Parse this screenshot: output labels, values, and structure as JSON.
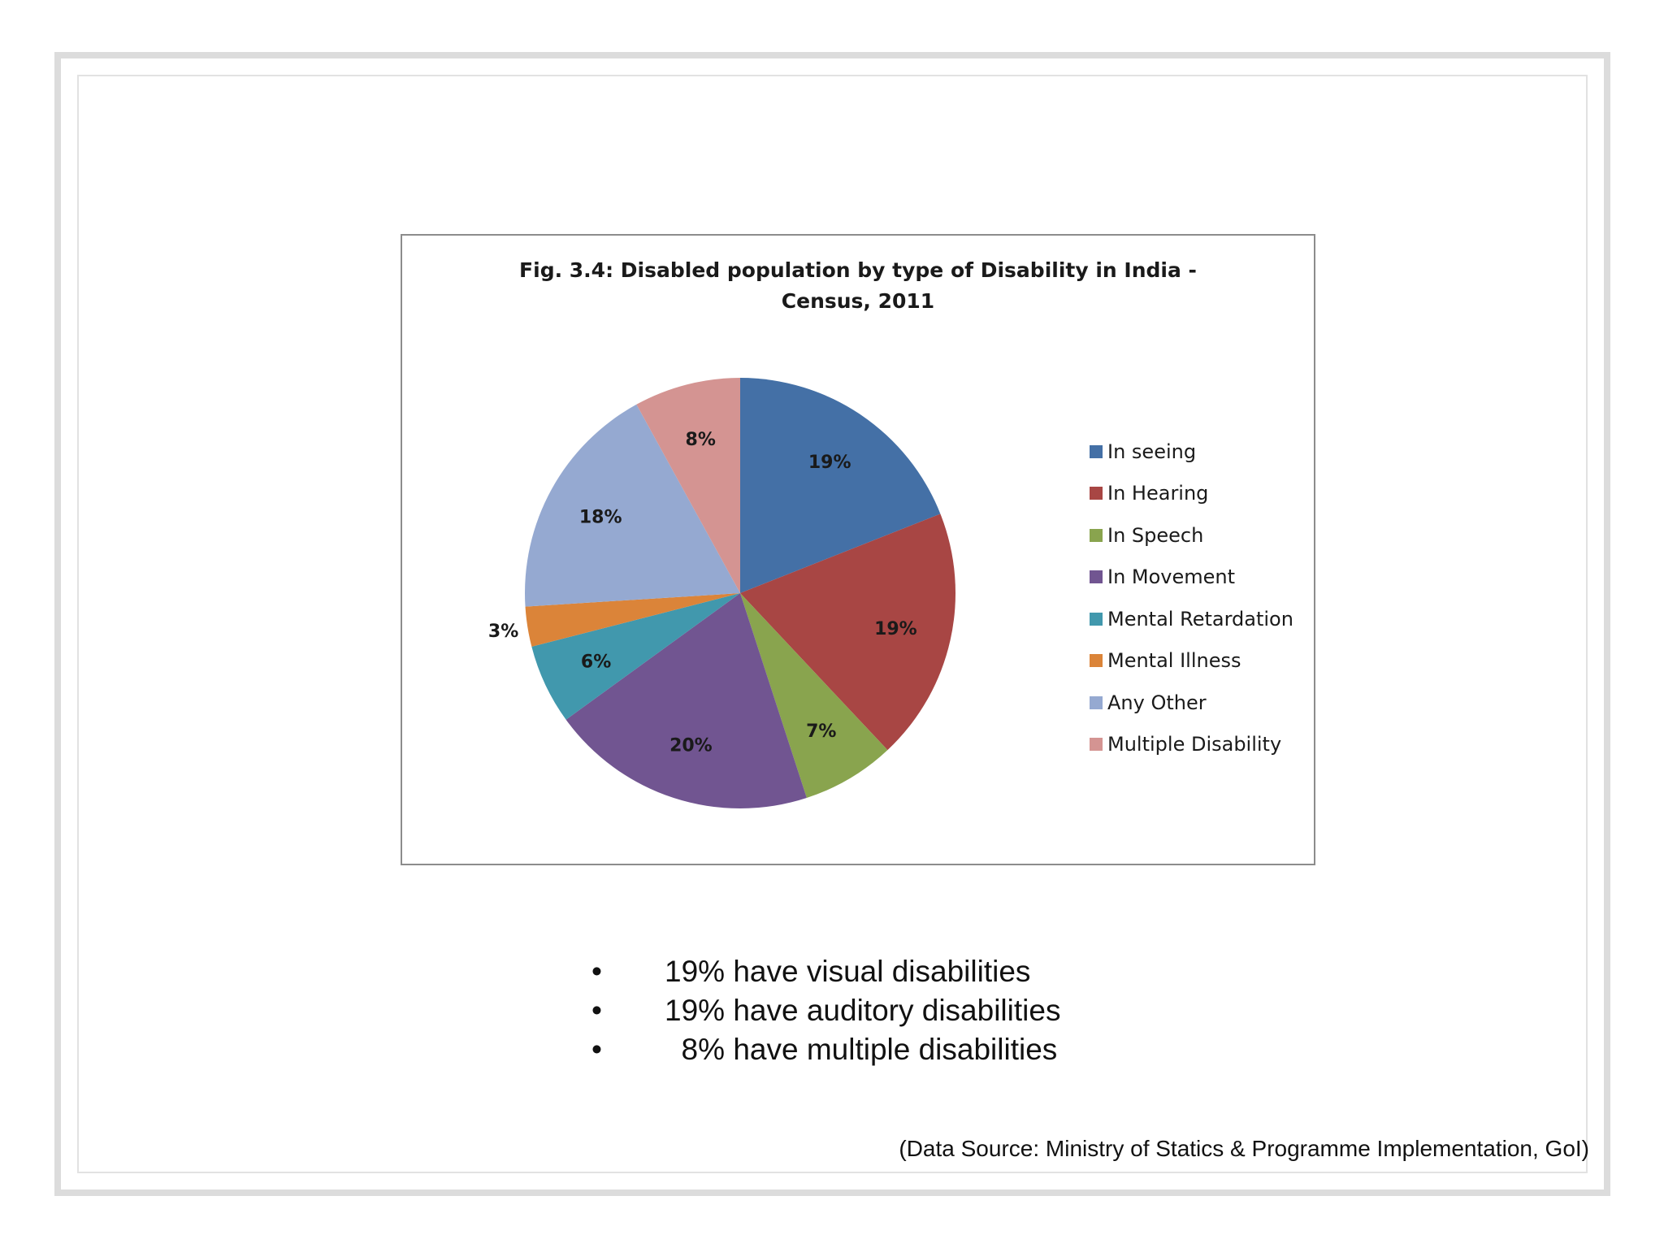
{
  "chart_data": {
    "type": "pie",
    "title_lines": [
      "Fig. 3.4: Disabled population by type of Disability in India -",
      "Census, 2011"
    ],
    "slices": [
      {
        "name": "In seeing",
        "value": 19,
        "label": "19%",
        "color": "#4470a6"
      },
      {
        "name": "In Hearing",
        "value": 19,
        "label": "19%",
        "color": "#a84644"
      },
      {
        "name": "In Speech",
        "value": 7,
        "label": "7%",
        "color": "#89a44e"
      },
      {
        "name": "In Movement",
        "value": 20,
        "label": "20%",
        "color": "#715591"
      },
      {
        "name": "Mental Retardation",
        "value": 6,
        "label": "6%",
        "color": "#4198ad"
      },
      {
        "name": "Mental Illness",
        "value": 3,
        "label": "3%",
        "color": "#db8439"
      },
      {
        "name": "Any Other",
        "value": 18,
        "label": "18%",
        "color": "#95a9d1"
      },
      {
        "name": "Multiple Disability",
        "value": 8,
        "label": "8%",
        "color": "#d49492"
      }
    ],
    "legend_position": "right"
  },
  "bullets": [
    {
      "marker": "•",
      "text": "19% have visual disabilities"
    },
    {
      "marker": "•",
      "text": "19% have auditory disabilities"
    },
    {
      "marker": "•",
      "text": "  8% have multiple disabilities"
    }
  ],
  "source_note": "(Data Source: Ministry of Statics & Programme Implementation, GoI)"
}
